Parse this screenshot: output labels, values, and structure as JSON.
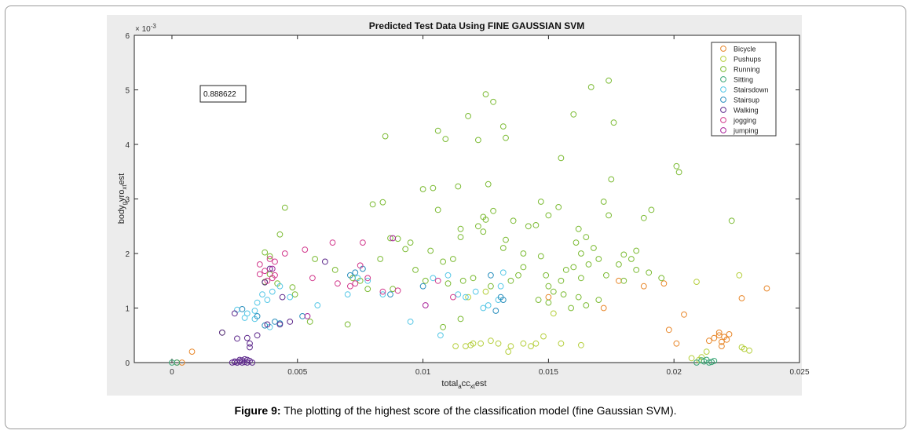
{
  "caption": {
    "label": "Figure 9:",
    "text": " The plotting of the highest score of the classification model (fine Gaussian SVM)."
  },
  "chart_data": {
    "type": "scatter",
    "title": "Predicted Test Data Using FINE GAUSSIAN SVM",
    "xlabel": {
      "base": "total",
      "sub1": "a",
      "mid": "cc",
      "sub2": "xt",
      "tail": "est"
    },
    "ylabel": {
      "base": "body",
      "sub1": "g",
      "mid": "yro",
      "sub2": "xt",
      "tail": "est"
    },
    "y_exponent": "× 10",
    "y_exponent_power": "-3",
    "xlim": [
      -0.0015,
      0.025
    ],
    "ylim": [
      0,
      6
    ],
    "xticks": [
      "0",
      "0.005",
      "0.01",
      "0.015",
      "0.02",
      "0.025"
    ],
    "xtick_values": [
      0,
      0.005,
      0.01,
      0.015,
      0.02,
      0.025
    ],
    "yticks": [
      "0",
      "1",
      "2",
      "3",
      "4",
      "5",
      "6"
    ],
    "ytick_values": [
      0,
      1,
      2,
      3,
      4,
      5,
      6
    ],
    "annotation": "0.888622",
    "legend_position": "top-right",
    "series": [
      {
        "name": "Bicycle",
        "color": "#e8872a",
        "points": [
          [
            0.0002,
            0.0
          ],
          [
            0.0004,
            0.0
          ],
          [
            0.0008,
            0.2
          ],
          [
            0.0196,
            1.45
          ],
          [
            0.0198,
            0.6
          ],
          [
            0.0201,
            0.35
          ],
          [
            0.0204,
            0.88
          ],
          [
            0.0216,
            0.45
          ],
          [
            0.0218,
            0.5
          ],
          [
            0.0219,
            0.38
          ],
          [
            0.022,
            0.47
          ],
          [
            0.0221,
            0.42
          ],
          [
            0.0222,
            0.52
          ],
          [
            0.0219,
            0.3
          ],
          [
            0.0227,
            1.18
          ],
          [
            0.0237,
            1.36
          ],
          [
            0.0178,
            1.5
          ],
          [
            0.0188,
            1.4
          ],
          [
            0.0172,
            1.0
          ],
          [
            0.015,
            1.2
          ],
          [
            0.0218,
            0.55
          ],
          [
            0.0214,
            0.4
          ]
        ]
      },
      {
        "name": "Pushups",
        "color": "#b5cf3c",
        "points": [
          [
            0.0113,
            0.3
          ],
          [
            0.0117,
            0.3
          ],
          [
            0.012,
            0.35
          ],
          [
            0.0123,
            0.35
          ],
          [
            0.0127,
            0.4
          ],
          [
            0.013,
            0.35
          ],
          [
            0.0135,
            0.3
          ],
          [
            0.014,
            0.35
          ],
          [
            0.0145,
            0.35
          ],
          [
            0.0148,
            0.48
          ],
          [
            0.0155,
            0.35
          ],
          [
            0.0163,
            0.32
          ],
          [
            0.0143,
            0.3
          ],
          [
            0.0118,
            1.2
          ],
          [
            0.0125,
            1.3
          ],
          [
            0.0152,
            0.9
          ],
          [
            0.0226,
            1.6
          ],
          [
            0.0227,
            0.28
          ],
          [
            0.0228,
            0.25
          ],
          [
            0.023,
            0.22
          ],
          [
            0.0207,
            0.08
          ],
          [
            0.021,
            0.05
          ],
          [
            0.0213,
            0.2
          ],
          [
            0.0119,
            0.32
          ],
          [
            0.0134,
            0.2
          ],
          [
            0.0209,
            1.48
          ],
          [
            0.0211,
            0.1
          ]
        ]
      },
      {
        "name": "Running",
        "color": "#7cbb34",
        "points": [
          [
            0.0085,
            4.15
          ],
          [
            0.0106,
            4.25
          ],
          [
            0.0109,
            4.1
          ],
          [
            0.0118,
            4.52
          ],
          [
            0.0125,
            4.92
          ],
          [
            0.0128,
            4.78
          ],
          [
            0.0122,
            4.08
          ],
          [
            0.0132,
            4.33
          ],
          [
            0.0133,
            4.12
          ],
          [
            0.0167,
            5.05
          ],
          [
            0.0174,
            5.17
          ],
          [
            0.0176,
            4.4
          ],
          [
            0.016,
            4.55
          ],
          [
            0.0155,
            3.75
          ],
          [
            0.0175,
            3.36
          ],
          [
            0.0201,
            3.6
          ],
          [
            0.0202,
            3.49
          ],
          [
            0.0104,
            3.2
          ],
          [
            0.01,
            3.18
          ],
          [
            0.0114,
            3.23
          ],
          [
            0.0126,
            3.27
          ],
          [
            0.0084,
            2.94
          ],
          [
            0.008,
            2.9
          ],
          [
            0.0045,
            2.84
          ],
          [
            0.0106,
            2.8
          ],
          [
            0.0124,
            2.67
          ],
          [
            0.0125,
            2.62
          ],
          [
            0.0128,
            2.78
          ],
          [
            0.0122,
            2.5
          ],
          [
            0.0124,
            2.4
          ],
          [
            0.0115,
            2.45
          ],
          [
            0.0115,
            2.3
          ],
          [
            0.0136,
            2.6
          ],
          [
            0.0142,
            2.5
          ],
          [
            0.0145,
            2.52
          ],
          [
            0.0147,
            2.95
          ],
          [
            0.015,
            2.7
          ],
          [
            0.0154,
            2.85
          ],
          [
            0.0165,
            2.3
          ],
          [
            0.0162,
            2.45
          ],
          [
            0.0161,
            2.2
          ],
          [
            0.0163,
            2.0
          ],
          [
            0.0168,
            2.1
          ],
          [
            0.0172,
            2.95
          ],
          [
            0.0174,
            2.7
          ],
          [
            0.018,
            1.98
          ],
          [
            0.0183,
            1.9
          ],
          [
            0.0185,
            2.05
          ],
          [
            0.0188,
            2.65
          ],
          [
            0.0191,
            2.8
          ],
          [
            0.0223,
            2.6
          ],
          [
            0.0043,
            2.35
          ],
          [
            0.0087,
            2.28
          ],
          [
            0.0095,
            2.2
          ],
          [
            0.0103,
            2.05
          ],
          [
            0.0108,
            1.85
          ],
          [
            0.0112,
            1.9
          ],
          [
            0.0132,
            2.1
          ],
          [
            0.0133,
            2.25
          ],
          [
            0.014,
            2.0
          ],
          [
            0.0083,
            1.9
          ],
          [
            0.009,
            2.27
          ],
          [
            0.0093,
            2.08
          ],
          [
            0.0097,
            1.7
          ],
          [
            0.0101,
            1.5
          ],
          [
            0.011,
            1.45
          ],
          [
            0.0116,
            1.5
          ],
          [
            0.012,
            1.55
          ],
          [
            0.0127,
            1.4
          ],
          [
            0.0135,
            1.5
          ],
          [
            0.0138,
            1.6
          ],
          [
            0.014,
            1.75
          ],
          [
            0.0147,
            1.95
          ],
          [
            0.0149,
            1.6
          ],
          [
            0.015,
            1.4
          ],
          [
            0.0152,
            1.3
          ],
          [
            0.0155,
            1.5
          ],
          [
            0.0157,
            1.7
          ],
          [
            0.016,
            1.75
          ],
          [
            0.0163,
            1.55
          ],
          [
            0.0166,
            1.8
          ],
          [
            0.017,
            1.9
          ],
          [
            0.0173,
            1.6
          ],
          [
            0.0178,
            1.8
          ],
          [
            0.018,
            1.5
          ],
          [
            0.0185,
            1.7
          ],
          [
            0.019,
            1.65
          ],
          [
            0.0195,
            1.55
          ],
          [
            0.0146,
            1.15
          ],
          [
            0.015,
            1.1
          ],
          [
            0.0156,
            1.25
          ],
          [
            0.0159,
            1.0
          ],
          [
            0.0162,
            1.2
          ],
          [
            0.0165,
            1.05
          ],
          [
            0.017,
            1.15
          ],
          [
            0.0108,
            0.65
          ],
          [
            0.0115,
            0.8
          ],
          [
            0.007,
            0.7
          ],
          [
            0.0055,
            0.75
          ],
          [
            0.0057,
            1.9
          ],
          [
            0.0065,
            1.7
          ],
          [
            0.0072,
            1.55
          ],
          [
            0.0075,
            1.5
          ],
          [
            0.0078,
            1.35
          ],
          [
            0.0088,
            1.35
          ],
          [
            0.0048,
            1.38
          ],
          [
            0.0042,
            1.45
          ],
          [
            0.0049,
            1.25
          ],
          [
            0.0037,
            1.48
          ],
          [
            0.0037,
            2.02
          ],
          [
            0.0039,
            1.95
          ],
          [
            0.0039,
            1.62
          ],
          [
            0.002,
            0.55
          ]
        ]
      },
      {
        "name": "Sitting",
        "color": "#3aa676",
        "points": [
          [
            0.0,
            0.0
          ],
          [
            0.0002,
            0.0
          ],
          [
            0.0209,
            0.0
          ],
          [
            0.0212,
            0.02
          ],
          [
            0.0213,
            0.05
          ],
          [
            0.0214,
            0.0
          ],
          [
            0.0216,
            0.03
          ],
          [
            0.0211,
            0.04
          ],
          [
            0.0215,
            0.01
          ]
        ]
      },
      {
        "name": "Stairsdown",
        "color": "#55c7e6",
        "points": [
          [
            0.0026,
            0.97
          ],
          [
            0.003,
            0.9
          ],
          [
            0.0033,
            0.95
          ],
          [
            0.0034,
            1.1
          ],
          [
            0.0036,
            1.25
          ],
          [
            0.0038,
            1.15
          ],
          [
            0.004,
            1.3
          ],
          [
            0.0043,
            1.4
          ],
          [
            0.0047,
            1.2
          ],
          [
            0.0058,
            1.05
          ],
          [
            0.007,
            1.25
          ],
          [
            0.0074,
            1.55
          ],
          [
            0.0078,
            1.5
          ],
          [
            0.0084,
            1.25
          ],
          [
            0.0095,
            0.75
          ],
          [
            0.0104,
            1.55
          ],
          [
            0.0107,
            0.5
          ],
          [
            0.0114,
            1.25
          ],
          [
            0.0117,
            1.2
          ],
          [
            0.0121,
            1.3
          ],
          [
            0.0124,
            1.0
          ],
          [
            0.0126,
            1.05
          ],
          [
            0.013,
            1.15
          ],
          [
            0.0132,
            1.65
          ],
          [
            0.0131,
            1.4
          ],
          [
            0.011,
            1.6
          ],
          [
            0.0033,
            0.8
          ],
          [
            0.0029,
            0.82
          ],
          [
            0.0039,
            0.65
          ]
        ]
      },
      {
        "name": "Stairsup",
        "color": "#2a8fbd",
        "points": [
          [
            0.0028,
            0.98
          ],
          [
            0.0034,
            0.85
          ],
          [
            0.0037,
            0.68
          ],
          [
            0.0041,
            0.75
          ],
          [
            0.0043,
            0.72
          ],
          [
            0.0052,
            0.85
          ],
          [
            0.0071,
            1.6
          ],
          [
            0.0073,
            1.65
          ],
          [
            0.0076,
            1.72
          ],
          [
            0.0087,
            1.25
          ],
          [
            0.0129,
            0.95
          ],
          [
            0.0131,
            1.2
          ],
          [
            0.0132,
            1.15
          ],
          [
            0.01,
            1.4
          ],
          [
            0.0127,
            1.6
          ]
        ]
      },
      {
        "name": "Walking",
        "color": "#5e2a8c",
        "points": [
          [
            0.0024,
            0.0
          ],
          [
            0.0025,
            0.01
          ],
          [
            0.0026,
            0.0
          ],
          [
            0.0027,
            0.02
          ],
          [
            0.0028,
            0.0
          ],
          [
            0.0029,
            0.01
          ],
          [
            0.003,
            0.0
          ],
          [
            0.0031,
            0.03
          ],
          [
            0.0028,
            0.04
          ],
          [
            0.0027,
            0.05
          ],
          [
            0.0026,
            0.0
          ],
          [
            0.0025,
            0.02
          ],
          [
            0.003,
            0.05
          ],
          [
            0.0032,
            0.0
          ],
          [
            0.0029,
            0.06
          ],
          [
            0.002,
            0.55
          ],
          [
            0.0026,
            0.44
          ],
          [
            0.003,
            0.45
          ],
          [
            0.0031,
            0.28
          ],
          [
            0.0031,
            0.35
          ],
          [
            0.0034,
            0.5
          ],
          [
            0.0038,
            0.7
          ],
          [
            0.0043,
            0.7
          ],
          [
            0.0047,
            0.75
          ],
          [
            0.0025,
            0.9
          ],
          [
            0.0037,
            1.47
          ],
          [
            0.0039,
            1.72
          ],
          [
            0.0044,
            1.2
          ],
          [
            0.0061,
            1.85
          ]
        ]
      },
      {
        "name": "jogging",
        "color": "#d23a8d",
        "points": [
          [
            0.0035,
            1.8
          ],
          [
            0.0035,
            1.62
          ],
          [
            0.0037,
            1.68
          ],
          [
            0.0038,
            1.5
          ],
          [
            0.004,
            1.55
          ],
          [
            0.0041,
            1.6
          ],
          [
            0.0039,
            1.9
          ],
          [
            0.0041,
            1.85
          ],
          [
            0.0045,
            2.0
          ],
          [
            0.0053,
            2.07
          ],
          [
            0.0056,
            1.55
          ],
          [
            0.0064,
            2.2
          ],
          [
            0.0066,
            1.45
          ],
          [
            0.0075,
            1.78
          ],
          [
            0.0078,
            1.55
          ],
          [
            0.0073,
            1.45
          ],
          [
            0.0071,
            1.4
          ],
          [
            0.0084,
            1.3
          ],
          [
            0.009,
            1.32
          ],
          [
            0.0106,
            1.5
          ],
          [
            0.0112,
            1.2
          ],
          [
            0.0076,
            2.2
          ]
        ]
      },
      {
        "name": "jumping",
        "color": "#a8249a",
        "points": [
          [
            0.004,
            1.72
          ],
          [
            0.0054,
            0.85
          ],
          [
            0.0088,
            2.28
          ],
          [
            0.0101,
            1.05
          ]
        ]
      }
    ]
  }
}
